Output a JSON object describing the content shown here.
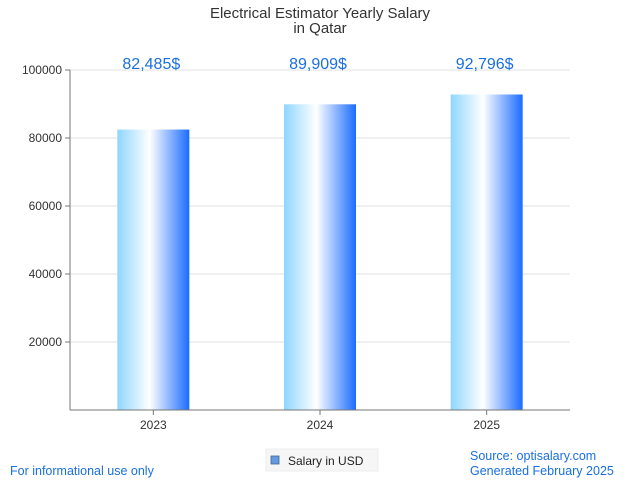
{
  "chart_data": {
    "type": "bar",
    "title_lines": [
      "Electrical Estimator Yearly Salary",
      "in Qatar"
    ],
    "categories": [
      "2023",
      "2024",
      "2025"
    ],
    "values": [
      82485,
      89909,
      92796
    ],
    "value_labels": [
      "82,485$",
      "89,909$",
      "92,796$"
    ],
    "series": [
      {
        "name": "Salary in USD",
        "values": [
          82485,
          89909,
          92796
        ]
      }
    ],
    "ylim": [
      0,
      100000
    ],
    "yticks": [
      "20000",
      "40000",
      "60000",
      "80000",
      "100000"
    ],
    "ytick_values": [
      20000,
      40000,
      60000,
      80000,
      100000
    ],
    "grid": true,
    "legend": "bottom-center",
    "xlabel": "",
    "ylabel": ""
  },
  "footer": {
    "disclaimer": "For informational use only",
    "source": "Source: optisalary.com",
    "generated": "Generated February 2025"
  },
  "colors": {
    "label_blue": "#1a6fe0",
    "footer_blue": "#1a6fe0",
    "grid": "#e0e0e0",
    "axis": "#777777",
    "bar_light": "#8fd6ff",
    "bar_white": "#ffffff",
    "bar_dark": "#1a6cff",
    "legend_swatch": "#6699dd"
  }
}
